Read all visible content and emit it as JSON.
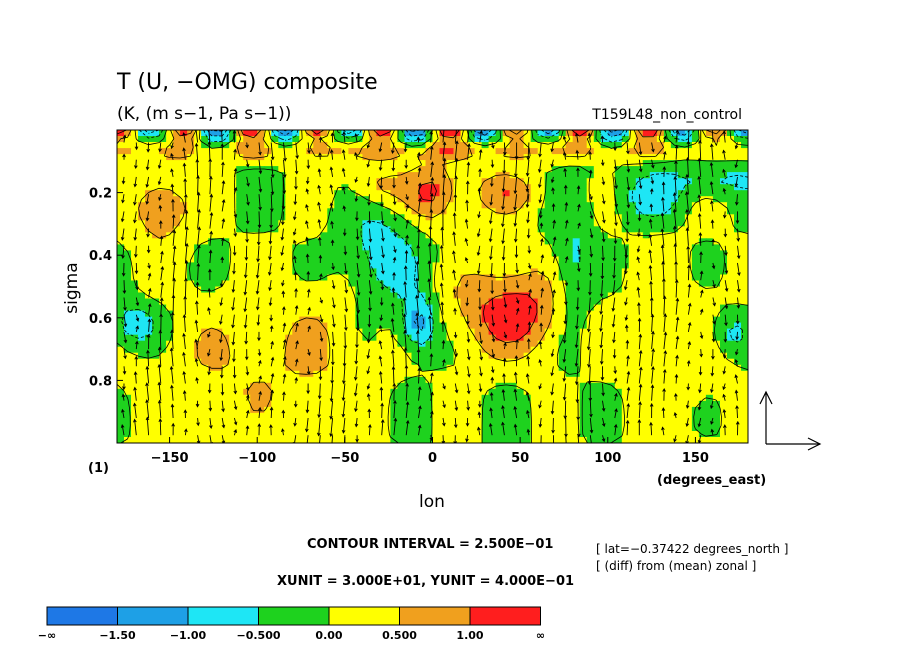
{
  "chart_data": {
    "type": "heatmap",
    "title": "T (U, −OMG) composite",
    "units": "(K, (m s−1, Pa s−1))",
    "run_label": "T159L48_non_control",
    "xlabel": "lon",
    "xunit_label": "(degrees_east)",
    "ylabel": "sigma",
    "xlim": [
      -180,
      180
    ],
    "ylim": [
      0.0,
      1.0
    ],
    "y_reversed": true,
    "x_ticks": [
      -150,
      -100,
      -50,
      0,
      50,
      100,
      150
    ],
    "x_tick_labels": [
      "−150",
      "−100",
      "−50",
      "0",
      "50",
      "100",
      "150"
    ],
    "y_ticks": [
      0.2,
      0.4,
      0.6,
      0.8
    ],
    "y_tick_labels": [
      "0.2",
      "0.4",
      "0.6",
      "0.8"
    ],
    "corner_label": "(1)",
    "contour_interval_text": "CONTOUR INTERVAL = 2.500E−01",
    "unit_vector_text": "XUNIT = 3.000E+01, YUNIT = 4.000E−01",
    "notes": [
      "[ lat=−0.37422 degrees_north ]",
      "[ (diff) from (mean) zonal ]"
    ],
    "colorbar": {
      "boundaries": [
        "−∞",
        "−1.50",
        "−1.00",
        "−0.500",
        "0.00",
        "0.500",
        "1.00",
        "∞"
      ],
      "colors": [
        "#1e78e6",
        "#1ea0e6",
        "#1ee6f5",
        "#1ed21e",
        "#ffff00",
        "#f0a01e",
        "#ff1e1e"
      ]
    },
    "levels": [
      -1.5,
      -1.0,
      -0.5,
      0.0,
      0.5,
      1.0
    ],
    "anomaly_features": [
      {
        "lon": -155,
        "sigma": 0.25,
        "sx": 12,
        "sy": 0.08,
        "amp": 0.95
      },
      {
        "lon": -170,
        "sigma": 0.62,
        "sx": 10,
        "sy": 0.05,
        "amp": -0.9
      },
      {
        "lon": -115,
        "sigma": 0.75,
        "sx": 35,
        "sy": 0.15,
        "amp": 0.45
      },
      {
        "lon": -60,
        "sigma": 0.7,
        "sx": 22,
        "sy": 0.2,
        "amp": 0.35
      },
      {
        "lon": -30,
        "sigma": 0.4,
        "sx": 16,
        "sy": 0.12,
        "amp": -0.8
      },
      {
        "lon": -30,
        "sigma": 0.18,
        "sx": 12,
        "sy": 0.05,
        "amp": 0.7
      },
      {
        "lon": -8,
        "sigma": 0.62,
        "sx": 7,
        "sy": 0.06,
        "amp": -1.3
      },
      {
        "lon": 0,
        "sigma": 0.2,
        "sx": 10,
        "sy": 0.07,
        "amp": 1.1
      },
      {
        "lon": 45,
        "sigma": 0.58,
        "sx": 22,
        "sy": 0.1,
        "amp": 1.3
      },
      {
        "lon": 40,
        "sigma": 0.2,
        "sx": 14,
        "sy": 0.05,
        "amp": 0.8
      },
      {
        "lon": 80,
        "sigma": 0.45,
        "sx": 8,
        "sy": 0.15,
        "amp": -0.7
      },
      {
        "lon": 125,
        "sigma": 0.22,
        "sx": 12,
        "sy": 0.05,
        "amp": -0.7
      },
      {
        "lon": 160,
        "sigma": 0.16,
        "sx": 25,
        "sy": 0.04,
        "amp": -0.6
      },
      {
        "lon": 170,
        "sigma": 0.65,
        "sx": 8,
        "sy": 0.05,
        "amp": -0.7
      },
      {
        "lon": 140,
        "sigma": 0.7,
        "sx": 25,
        "sy": 0.2,
        "amp": 0.3
      },
      {
        "lon": 0,
        "sigma": 0.07,
        "sx": 200,
        "sy": 0.02,
        "amp": 0.6
      }
    ]
  }
}
